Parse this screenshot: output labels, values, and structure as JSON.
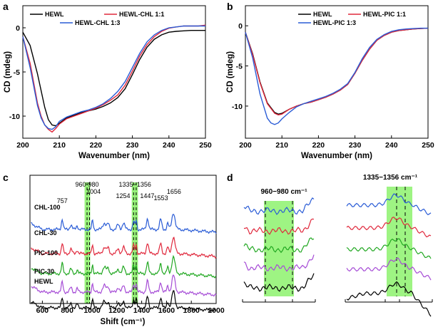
{
  "colors": {
    "black": "#000000",
    "red": "#e0283c",
    "blue": "#2a5cd6",
    "green": "#22a822",
    "purple": "#a64cd6",
    "highlight": "#7ef05a"
  },
  "panel_labels": {
    "a": "a",
    "b": "b",
    "c": "c",
    "d": "d"
  },
  "chart_data": [
    {
      "id": "a",
      "type": "line",
      "xlabel": "Wavenumber (nm)",
      "ylabel": "CD (mdeg)",
      "xlim": [
        200,
        250
      ],
      "ylim": [
        -12.5,
        2.5
      ],
      "xticks": [
        200,
        210,
        220,
        230,
        240,
        250
      ],
      "yticks": [
        0,
        -5,
        -10
      ],
      "legend_position": "top-left",
      "series": [
        {
          "name": "HEWL",
          "color": "#000000",
          "x": [
            200,
            202,
            204,
            206,
            207,
            208,
            209,
            210,
            212,
            214,
            216,
            218,
            220,
            222,
            224,
            226,
            228,
            230,
            232,
            234,
            236,
            238,
            240,
            242,
            244,
            246,
            248,
            250
          ],
          "values": [
            -0.5,
            -2.0,
            -5.2,
            -9.0,
            -10.4,
            -11.0,
            -11.1,
            -10.8,
            -10.2,
            -9.9,
            -9.6,
            -9.4,
            -9.2,
            -8.9,
            -8.5,
            -7.9,
            -6.9,
            -5.3,
            -3.6,
            -2.2,
            -1.3,
            -0.8,
            -0.5,
            -0.4,
            -0.35,
            -0.3,
            -0.3,
            -0.3
          ]
        },
        {
          "name": "HEWL-CHL 1:1",
          "color": "#e0283c",
          "x": [
            200,
            202,
            204,
            205,
            206,
            207,
            208,
            209,
            210,
            212,
            214,
            216,
            218,
            220,
            222,
            224,
            226,
            228,
            230,
            232,
            234,
            236,
            238,
            240,
            242,
            244,
            246,
            248,
            250
          ],
          "values": [
            -1.0,
            -4.0,
            -8.5,
            -10.0,
            -11.0,
            -11.5,
            -11.8,
            -11.4,
            -10.9,
            -10.3,
            -10.0,
            -9.7,
            -9.4,
            -9.1,
            -8.7,
            -8.2,
            -7.6,
            -6.5,
            -4.9,
            -3.2,
            -1.9,
            -1.0,
            -0.4,
            -0.05,
            0.1,
            0.2,
            0.2,
            0.2,
            0.3
          ]
        },
        {
          "name": "HEWL-CHL 1:3",
          "color": "#2a5cd6",
          "x": [
            200,
            202,
            204,
            205,
            206,
            207,
            208,
            209,
            210,
            212,
            214,
            216,
            218,
            220,
            222,
            224,
            226,
            228,
            230,
            232,
            234,
            236,
            238,
            240,
            242,
            244,
            246,
            248,
            250
          ],
          "values": [
            -1.0,
            -4.5,
            -8.8,
            -10.2,
            -11.0,
            -11.4,
            -11.5,
            -11.2,
            -10.6,
            -10.1,
            -9.8,
            -9.5,
            -9.3,
            -9.0,
            -8.6,
            -8.0,
            -7.2,
            -6.1,
            -4.5,
            -2.9,
            -1.6,
            -0.8,
            -0.3,
            0.0,
            0.1,
            0.2,
            0.2,
            0.2,
            0.2
          ]
        }
      ]
    },
    {
      "id": "b",
      "type": "line",
      "xlabel": "Wavenumber (nm)",
      "ylabel": "CD (mdeg)",
      "xlim": [
        200,
        250
      ],
      "ylim": [
        -14,
        2.5
      ],
      "xticks": [
        200,
        210,
        220,
        230,
        240,
        250
      ],
      "yticks": [
        0,
        -5,
        -10
      ],
      "legend_position": "top-right",
      "series": [
        {
          "name": "HEWL",
          "color": "#000000",
          "x": [
            200,
            202,
            204,
            206,
            208,
            209,
            210,
            212,
            214,
            216,
            218,
            220,
            222,
            224,
            226,
            228,
            230,
            232,
            234,
            236,
            238,
            240,
            242,
            244,
            246,
            248,
            250
          ],
          "values": [
            -0.8,
            -3.5,
            -7.0,
            -9.6,
            -10.8,
            -11.0,
            -10.9,
            -10.4,
            -10.0,
            -9.7,
            -9.5,
            -9.2,
            -8.9,
            -8.5,
            -8.0,
            -7.3,
            -5.9,
            -4.3,
            -2.9,
            -1.8,
            -1.2,
            -0.8,
            -0.6,
            -0.5,
            -0.4,
            -0.35,
            -0.3
          ]
        },
        {
          "name": "HEWL-PIC 1:1",
          "color": "#e0283c",
          "x": [
            200,
            202,
            204,
            206,
            208,
            209,
            210,
            212,
            214,
            216,
            218,
            220,
            222,
            224,
            226,
            228,
            230,
            232,
            234,
            236,
            238,
            240,
            242,
            244,
            246,
            248,
            250
          ],
          "values": [
            -0.8,
            -3.6,
            -7.1,
            -9.7,
            -10.9,
            -11.1,
            -11.0,
            -10.4,
            -10.0,
            -9.7,
            -9.5,
            -9.2,
            -8.9,
            -8.5,
            -8.0,
            -7.3,
            -5.9,
            -4.3,
            -2.9,
            -1.8,
            -1.2,
            -0.8,
            -0.6,
            -0.5,
            -0.4,
            -0.35,
            -0.3
          ]
        },
        {
          "name": "HEWL-PIC 1:3",
          "color": "#2a5cd6",
          "x": [
            200,
            202,
            204,
            206,
            207,
            208,
            209,
            210,
            212,
            214,
            216,
            218,
            220,
            222,
            224,
            226,
            228,
            230,
            232,
            234,
            236,
            238,
            240,
            242,
            244,
            246,
            248,
            250
          ],
          "values": [
            -0.8,
            -4.0,
            -8.5,
            -11.5,
            -12.1,
            -12.3,
            -12.1,
            -11.6,
            -10.8,
            -10.1,
            -9.7,
            -9.4,
            -9.1,
            -8.8,
            -8.4,
            -7.9,
            -7.2,
            -5.8,
            -4.1,
            -2.7,
            -1.7,
            -1.1,
            -0.7,
            -0.5,
            -0.4,
            -0.35,
            -0.3,
            -0.3
          ]
        }
      ]
    },
    {
      "id": "c",
      "type": "line",
      "xlabel": "Shift (cm⁻¹)",
      "xlim": [
        500,
        2000
      ],
      "xticks": [
        600,
        800,
        1000,
        1200,
        1400,
        1600,
        1800,
        2000
      ],
      "highlight_ranges": [
        [
          940,
          985
        ],
        [
          1320,
          1370
        ]
      ],
      "dashed_lines": [
        960,
        980,
        1335,
        1356
      ],
      "annotations": [
        {
          "text": "960-980",
          "x": 960
        },
        {
          "text": "1335−1356",
          "x": 1348
        },
        {
          "text": "757",
          "x": 760
        },
        {
          "text": "1004",
          "x": 1004
        },
        {
          "text": "1254",
          "x": 1254
        },
        {
          "text": "1447",
          "x": 1447
        },
        {
          "text": "1553",
          "x": 1553
        },
        {
          "text": "1656",
          "x": 1656
        }
      ],
      "series": [
        {
          "name": "CHL-100",
          "color": "#2a5cd6",
          "offset": 4
        },
        {
          "name": "CHL-30",
          "color": "#e0283c",
          "offset": 3
        },
        {
          "name": "PIC-100",
          "color": "#22a822",
          "offset": 2
        },
        {
          "name": "PIC-30",
          "color": "#a64cd6",
          "offset": 1
        },
        {
          "name": "HEWL",
          "color": "#000000",
          "offset": 0
        }
      ]
    },
    {
      "id": "d",
      "type": "line",
      "annotations": [
        {
          "text": "960−980 cm⁻¹"
        },
        {
          "text": "1335−1356 cm⁻¹"
        }
      ],
      "series_colors": [
        "#2a5cd6",
        "#e0283c",
        "#22a822",
        "#a64cd6",
        "#000000"
      ]
    }
  ]
}
